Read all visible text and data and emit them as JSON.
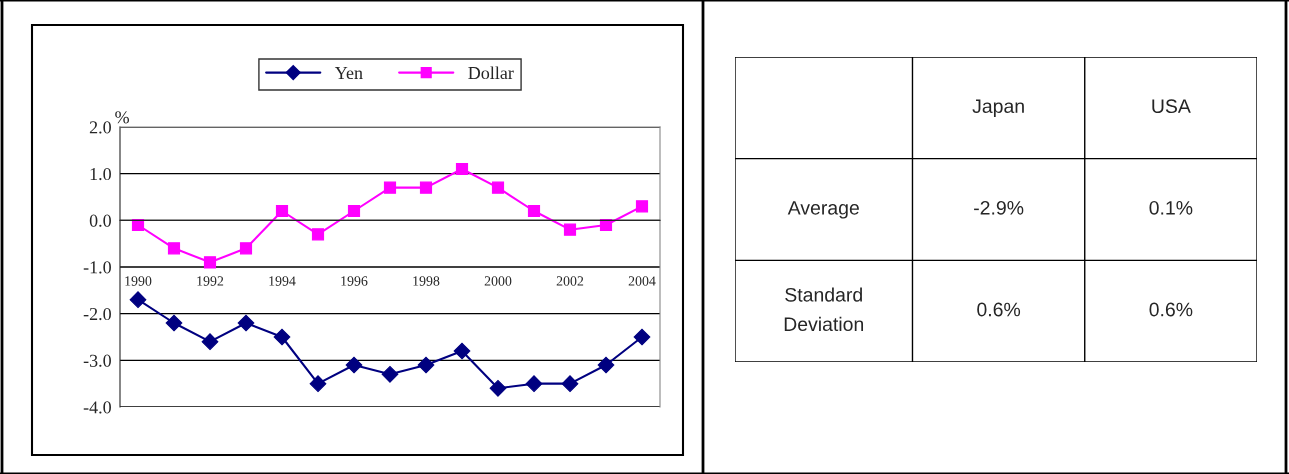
{
  "chart_data": [
    {
      "type": "line",
      "ylabel": "%",
      "categories": [
        "1990",
        null,
        "1992",
        null,
        "1994",
        null,
        "1996",
        null,
        "1998",
        null,
        "2000",
        null,
        "2002",
        null,
        "2004"
      ],
      "series": [
        {
          "name": "Yen",
          "color": "#000080",
          "marker": "diamond",
          "values": [
            -1.7,
            -2.2,
            -2.6,
            -2.2,
            -2.5,
            -3.5,
            -3.1,
            -3.3,
            -3.1,
            -2.8,
            -3.6,
            -3.5,
            -3.5,
            -3.1,
            -2.5
          ]
        },
        {
          "name": "Dollar",
          "color": "#ff00ff",
          "marker": "square",
          "values": [
            -0.1,
            -0.6,
            -0.9,
            -0.6,
            0.2,
            -0.3,
            0.2,
            0.7,
            0.7,
            1.1,
            0.7,
            0.2,
            -0.2,
            -0.1,
            0.3
          ]
        }
      ],
      "ylim": [
        -4.0,
        2.0
      ],
      "yticks": [
        {
          "value": -4,
          "label": "-4.0"
        },
        {
          "value": -3,
          "label": "-3.0"
        },
        {
          "value": -2,
          "label": "-2.0"
        },
        {
          "value": -1,
          "label": "-1.0"
        },
        {
          "value": 0,
          "label": "0.0"
        },
        {
          "value": 1,
          "label": "1.0"
        },
        {
          "value": 2,
          "label": "2.0"
        }
      ],
      "grid": "y",
      "legend": "top",
      "line_style": "solid"
    },
    {
      "type": "other",
      "annotations": [
        "Japan",
        "USA",
        "Average",
        "-2.9%",
        "0.1%",
        "Standard\nDeviation",
        "0.6%",
        "0.6%"
      ]
    }
  ]
}
